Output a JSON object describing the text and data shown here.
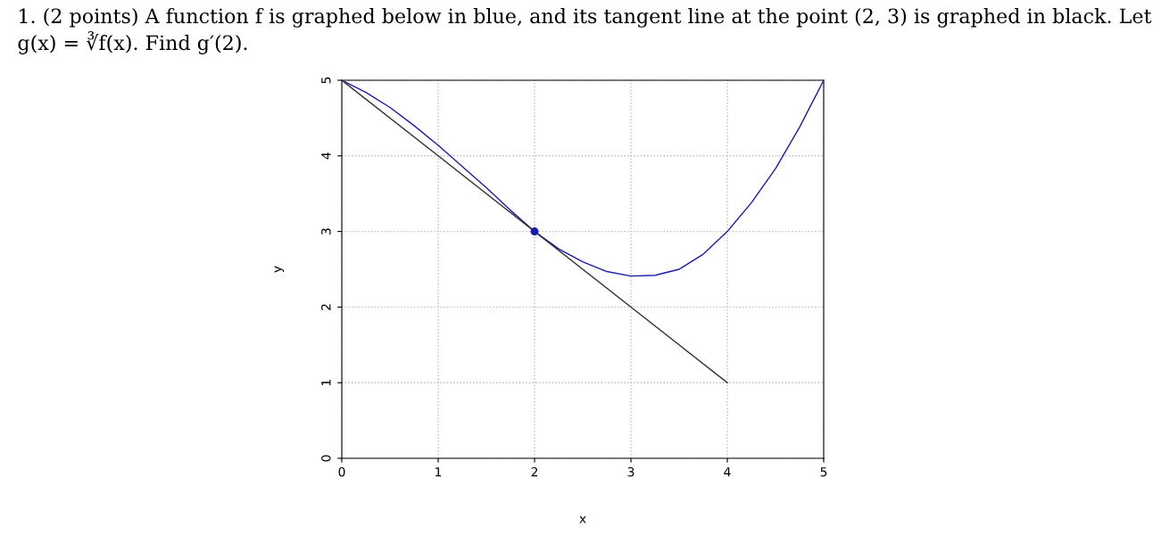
{
  "chart_data": {
    "type": "line",
    "title": "1. (2 points) A function f is graphed below in blue, and its tangent line at the point (2, 3) is graphed in black. Let g(x) = ∛f(x). Find g′(2).",
    "xlabel": "x",
    "ylabel": "y",
    "xlim": [
      0,
      5
    ],
    "ylim": [
      0,
      5
    ],
    "xticks": [
      0,
      1,
      2,
      3,
      4,
      5
    ],
    "yticks": [
      0,
      1,
      2,
      3,
      4,
      5
    ],
    "grid": true,
    "series": [
      {
        "color": "#1a1ab4",
        "marker": "none",
        "x": [
          0,
          0.25,
          0.5,
          0.75,
          1,
          1.25,
          1.5,
          1.75,
          2,
          2.25,
          2.5,
          2.75,
          3,
          3.25,
          3.5,
          3.75,
          4,
          4.25,
          4.5,
          4.75,
          5
        ],
        "values": [
          5,
          4.84,
          4.64,
          4.4,
          4.14,
          3.86,
          3.58,
          3.28,
          3,
          2.77,
          2.6,
          2.47,
          2.41,
          2.42,
          2.5,
          2.7,
          3.0,
          3.38,
          3.83,
          4.38,
          5
        ]
      },
      {
        "color": "#333333",
        "marker": "none",
        "x": [
          0,
          4
        ],
        "values": [
          5,
          1
        ]
      },
      {
        "type": "scatter",
        "color": "#1a1ab4",
        "marker": "circle",
        "x": [
          2
        ],
        "values": [
          3
        ]
      }
    ]
  }
}
